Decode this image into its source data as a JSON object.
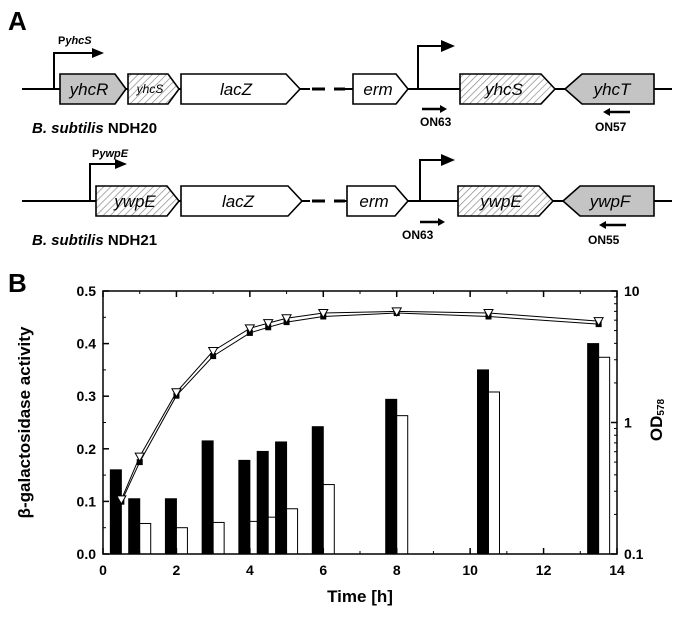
{
  "panel_a": {
    "label": "A",
    "constructs": [
      {
        "strain_prefix": "B. subtilis",
        "strain_name": "NDH20",
        "promoter_prefix": "P",
        "promoter_gene": "yhcS",
        "left_genes": [
          "yhcR",
          "yhcS",
          "lacZ"
        ],
        "right_genes": [
          "erm",
          "yhcS",
          "yhcT"
        ],
        "primer_forward": "ON63",
        "primer_reverse": "ON57"
      },
      {
        "strain_prefix": "B. subtilis",
        "strain_name": "NDH21",
        "promoter_prefix": "P",
        "promoter_gene": "ywpE",
        "left_genes": [
          "ywpE",
          "lacZ"
        ],
        "right_genes": [
          "erm",
          "ywpE",
          "ywpF"
        ],
        "primer_forward": "ON63",
        "primer_reverse": "ON55"
      }
    ]
  },
  "panel_b": {
    "label": "B"
  },
  "chart_data": {
    "type": "bar",
    "xlabel": "Time [h]",
    "ylabel": "β-galactosidase activity",
    "y2label_main": "OD",
    "y2label_sub": "578",
    "xlim": [
      0,
      14
    ],
    "ylim": [
      0,
      0.5
    ],
    "y2lim": [
      0.1,
      10
    ],
    "y2_scale": "log",
    "x_ticks": [
      "0",
      "2",
      "4",
      "6",
      "8",
      "10",
      "12",
      "14"
    ],
    "y_ticks": [
      "0.0",
      "0.1",
      "0.2",
      "0.3",
      "0.4",
      "0.5"
    ],
    "y2_ticks": [
      "0.1",
      "1",
      "10"
    ],
    "bar_times": [
      0.5,
      1,
      2,
      3,
      4,
      4.5,
      5,
      6,
      8,
      10.5,
      13.5
    ],
    "series": [
      {
        "values": [
          0.16,
          0.105,
          0.105,
          0.215,
          0.178,
          0.195,
          0.213,
          0.242,
          0.294,
          0.35,
          0.4
        ],
        "color": "#000000"
      },
      {
        "values": [
          null,
          0.058,
          0.05,
          0.06,
          0.062,
          0.07,
          0.086,
          0.132,
          0.263,
          0.308,
          0.374
        ],
        "color": "#ffffff"
      }
    ],
    "growth_curves": [
      {
        "marker": "square",
        "x": [
          0.5,
          1,
          2,
          3,
          4,
          4.5,
          5,
          6,
          8,
          10.5,
          13.5
        ],
        "y": [
          0.25,
          0.5,
          1.6,
          3.2,
          4.8,
          5.3,
          5.8,
          6.4,
          6.8,
          6.4,
          5.6
        ]
      },
      {
        "marker": "triangle",
        "x": [
          0.5,
          1,
          2,
          3,
          4,
          4.5,
          5,
          6,
          8,
          10.5,
          13.5
        ],
        "y": [
          0.26,
          0.55,
          1.7,
          3.5,
          5.2,
          5.7,
          6.2,
          6.8,
          7.0,
          6.8,
          5.9
        ]
      }
    ]
  }
}
